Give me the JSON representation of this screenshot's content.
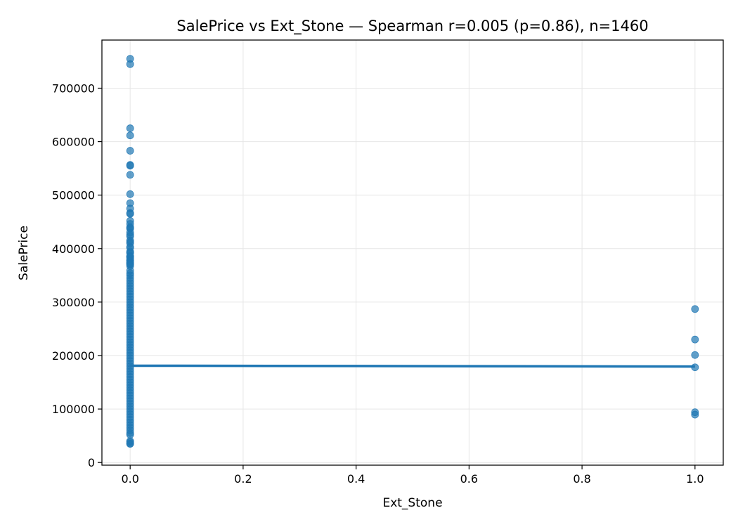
{
  "chart_data": {
    "type": "scatter",
    "title": "SalePrice vs Ext_Stone — Spearman r=0.005 (p=0.86), n=1460",
    "xlabel": "Ext_Stone",
    "ylabel": "SalePrice",
    "xlim": [
      -0.05,
      1.05
    ],
    "ylim": [
      -5000,
      790000
    ],
    "xticks": [
      0.0,
      0.2,
      0.4,
      0.6,
      0.8,
      1.0
    ],
    "xtick_labels": [
      "0.0",
      "0.2",
      "0.4",
      "0.6",
      "0.8",
      "1.0"
    ],
    "yticks": [
      0,
      100000,
      200000,
      300000,
      400000,
      500000,
      600000,
      700000
    ],
    "ytick_labels": [
      "0",
      "100000",
      "200000",
      "300000",
      "400000",
      "500000",
      "600000",
      "700000"
    ],
    "grid": true,
    "point_color": "#1f77b4",
    "line_color": "#1f77b4",
    "series": [
      {
        "x": 0,
        "values": [
          755000,
          745000,
          625000,
          611657,
          582933,
          556581,
          555000,
          538000,
          501837,
          485000,
          475000,
          466500,
          465000,
          451950,
          446261,
          440000,
          438780,
          437154,
          430000,
          426000,
          423000,
          415298,
          412500,
          410000,
          402861,
          402000,
          394617,
          392500,
          392000,
          386250,
          385000,
          384500,
          383970,
          381000,
          378500,
          377500,
          377426,
          375000,
          374000,
          372500,
          372402,
          370878,
          369900,
          367294,
          359100,
          354000,
          350000,
          345000,
          340000,
          335000,
          330000,
          325000,
          320000,
          315000,
          310000,
          305000,
          300000,
          295000,
          290000,
          285000,
          280000,
          275000,
          270000,
          265000,
          260000,
          255000,
          250000,
          245000,
          240000,
          235000,
          230000,
          225000,
          220000,
          215000,
          210000,
          205000,
          200000,
          195000,
          190000,
          185000,
          180000,
          175000,
          170000,
          165000,
          160000,
          155000,
          150000,
          145000,
          140000,
          135000,
          130000,
          125000,
          120000,
          115000,
          110000,
          105000,
          100000,
          95000,
          90000,
          85000,
          80000,
          75000,
          70000,
          65000,
          60000,
          55000,
          52000,
          40000,
          37900,
          35311,
          34900
        ]
      },
      {
        "x": 1,
        "values": [
          287000,
          230000,
          201000,
          178000,
          94000,
          89500
        ]
      }
    ],
    "trend_line": {
      "x": [
        0,
        1
      ],
      "y": [
        181000,
        179500
      ]
    }
  }
}
